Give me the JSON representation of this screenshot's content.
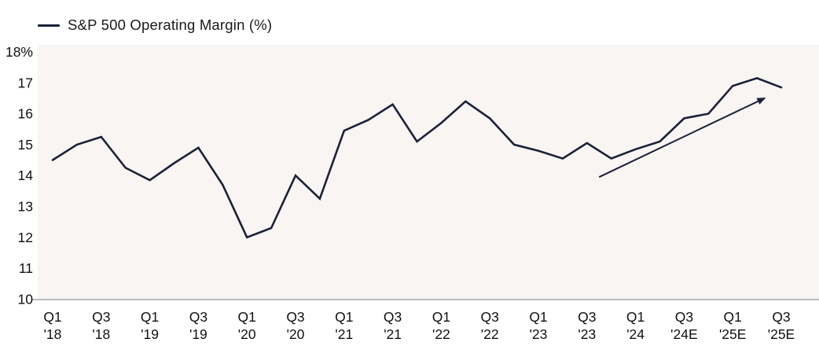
{
  "colors": {
    "line": "#1b2139",
    "arrow": "#1b2139",
    "plot_background": "#f8f5f2",
    "axis_line": "#a9a7a5",
    "label_text": "#111111",
    "page_background": "#ffffff"
  },
  "chart_data": {
    "type": "line",
    "title": "S&P 500 Operating Margin (%)",
    "legend_position": "top-left",
    "grid": false,
    "ylim": [
      10,
      18
    ],
    "y_tick_labels": [
      "18%",
      "17",
      "16",
      "15",
      "14",
      "13",
      "12",
      "11",
      "10"
    ],
    "y_tick_values": [
      18,
      17,
      16,
      15,
      14,
      13,
      12,
      11,
      10
    ],
    "x_tick_labels": [
      [
        "Q1",
        "'18"
      ],
      [
        "Q3",
        "'18"
      ],
      [
        "Q1",
        "'19"
      ],
      [
        "Q3",
        "'19"
      ],
      [
        "Q1",
        "'20"
      ],
      [
        "Q3",
        "'20"
      ],
      [
        "Q1",
        "'21"
      ],
      [
        "Q3",
        "'21"
      ],
      [
        "Q1",
        "'22"
      ],
      [
        "Q3",
        "'22"
      ],
      [
        "Q1",
        "'23"
      ],
      [
        "Q3",
        "'23"
      ],
      [
        "Q1",
        "'24"
      ],
      [
        "Q3",
        "'24E"
      ],
      [
        "Q1",
        "'25E"
      ],
      [
        "Q3",
        "'25E"
      ]
    ],
    "x_tick_indices": [
      0,
      2,
      4,
      6,
      8,
      10,
      12,
      14,
      16,
      18,
      20,
      22,
      24,
      26,
      28,
      30
    ],
    "series": [
      {
        "name": "S&P 500 Operating Margin (%)",
        "quarters": [
          "Q1 '18",
          "Q2 '18",
          "Q3 '18",
          "Q4 '18",
          "Q1 '19",
          "Q2 '19",
          "Q3 '19",
          "Q4 '19",
          "Q1 '20",
          "Q2 '20",
          "Q3 '20",
          "Q4 '20",
          "Q1 '21",
          "Q2 '21",
          "Q3 '21",
          "Q4 '21",
          "Q1 '22",
          "Q2 '22",
          "Q3 '22",
          "Q4 '22",
          "Q1 '23",
          "Q2 '23",
          "Q3 '23",
          "Q4 '23",
          "Q1 '24",
          "Q2 '24",
          "Q3 '24E",
          "Q4 '24E",
          "Q1 '25E",
          "Q2 '25E",
          "Q3 '25E"
        ],
        "values": [
          14.5,
          15.0,
          15.25,
          14.25,
          13.85,
          14.4,
          14.9,
          13.7,
          12.0,
          12.3,
          14.0,
          13.25,
          15.45,
          15.8,
          16.3,
          15.1,
          15.7,
          16.4,
          15.85,
          15.0,
          14.8,
          14.55,
          15.05,
          14.55,
          14.85,
          15.1,
          15.85,
          16.0,
          16.9,
          17.15,
          16.85
        ]
      }
    ],
    "annotation_arrow": {
      "from": {
        "x_index": 22.5,
        "value": 13.95
      },
      "to": {
        "x_index": 29.5,
        "value": 16.55
      }
    }
  }
}
